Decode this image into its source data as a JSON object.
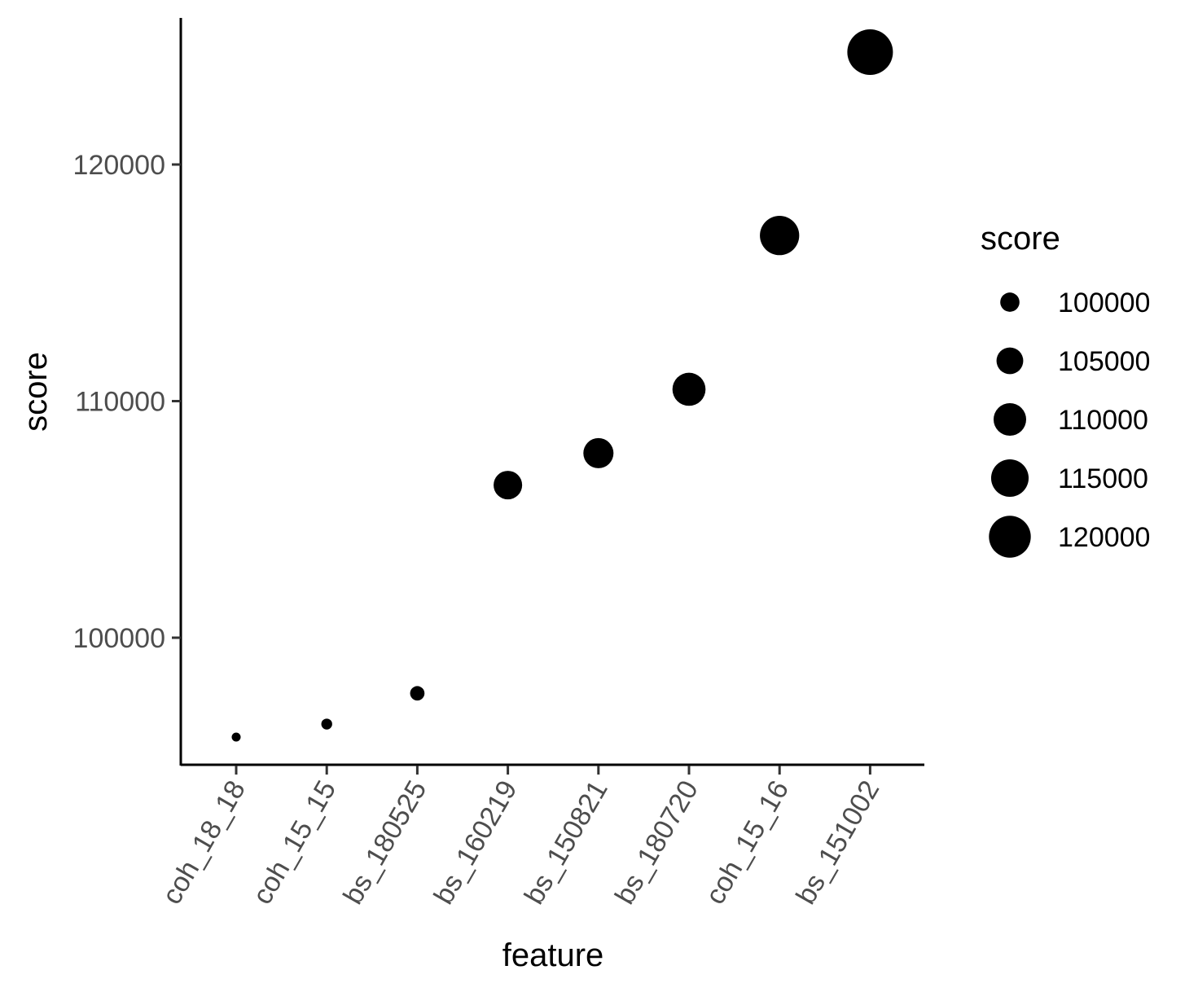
{
  "chart_data": {
    "type": "scatter",
    "xlabel": "feature",
    "ylabel": "score",
    "categories": [
      "coh_18_18",
      "coh_15_15",
      "bs_180525",
      "bs_160219",
      "bs_150821",
      "bs_180720",
      "coh_15_16",
      "bs_151002"
    ],
    "values": [
      95800,
      96350,
      97650,
      106450,
      107800,
      110500,
      117000,
      124750
    ],
    "ylim": [
      94600,
      125800
    ],
    "yticks": [
      100000,
      110000,
      120000
    ],
    "ytick_labels": [
      "100000",
      "110000",
      "120000"
    ],
    "size_range": [
      95800,
      124750
    ],
    "legend": {
      "title": "score",
      "position": "right",
      "entries": [
        {
          "label": "100000",
          "value": 100000
        },
        {
          "label": "105000",
          "value": 105000
        },
        {
          "label": "110000",
          "value": 110000
        },
        {
          "label": "115000",
          "value": 115000
        },
        {
          "label": "120000",
          "value": 120000
        }
      ]
    },
    "grid": false,
    "colors": {
      "point": "#000000",
      "axis": "#000000",
      "tick_text": "#4d4d4d"
    }
  }
}
